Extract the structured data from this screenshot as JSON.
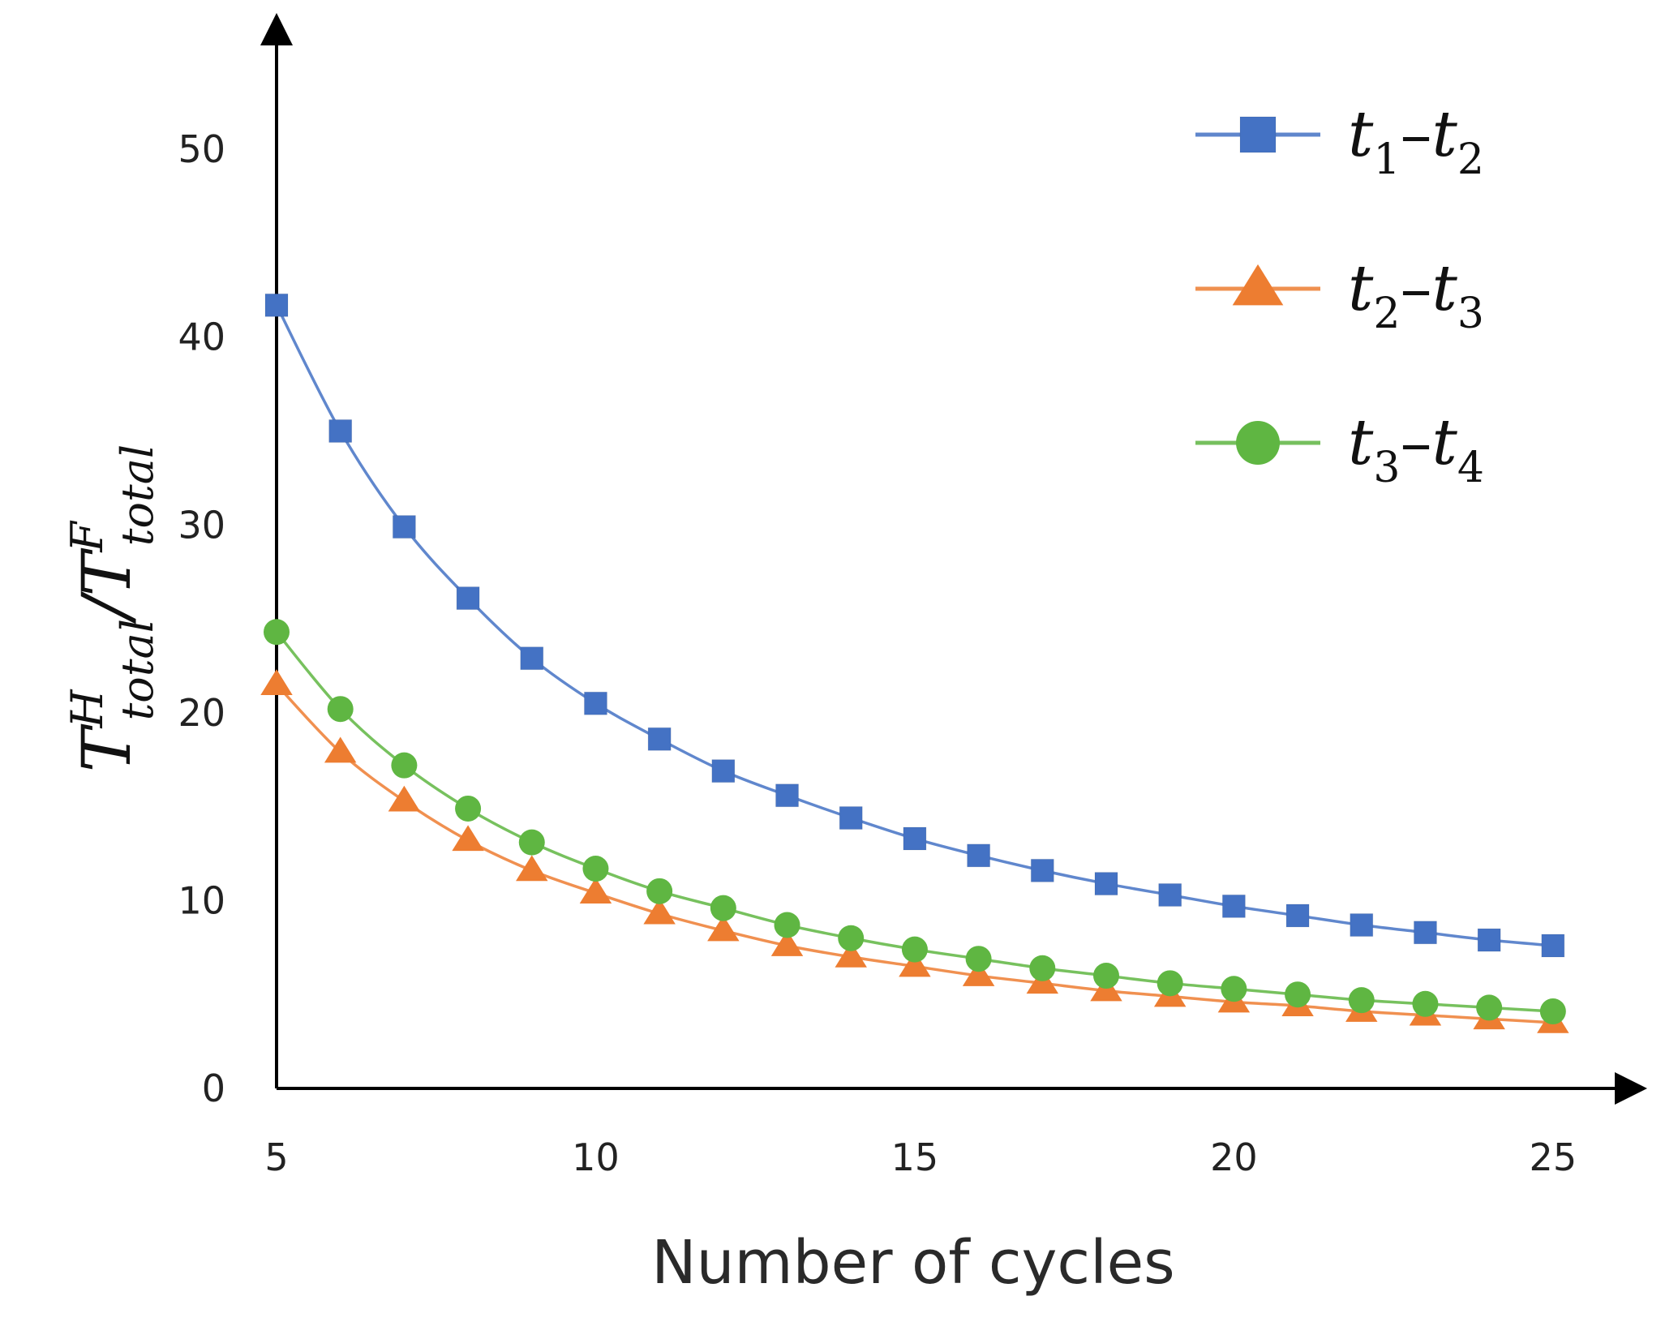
{
  "chart_data": {
    "type": "line",
    "title": "",
    "xlabel": "Number of cycles",
    "ylabel": {
      "base": "T",
      "num_sup": "H",
      "num_sub": "total",
      "slash": "/",
      "den_sup": "F",
      "den_sub": "total"
    },
    "x": [
      5,
      6,
      7,
      8,
      9,
      10,
      11,
      12,
      13,
      14,
      15,
      16,
      17,
      18,
      19,
      20,
      21,
      22,
      23,
      24,
      25
    ],
    "xlim": [
      5,
      26.4
    ],
    "ylim": [
      0,
      57
    ],
    "xticks": [
      5,
      10,
      15,
      20,
      25
    ],
    "yticks": [
      0,
      10,
      20,
      30,
      40,
      50
    ],
    "grid": false,
    "legend_position": "top-right",
    "series": [
      {
        "name": "t1–t2",
        "legend": {
          "a": "t",
          "a_sub": "1",
          "dash": "–",
          "b": "t",
          "b_sub": "2"
        },
        "color": "#4472C4",
        "marker": "square",
        "values": [
          41.7,
          35.0,
          29.9,
          26.1,
          22.9,
          20.5,
          18.6,
          16.9,
          15.6,
          14.4,
          13.3,
          12.4,
          11.6,
          10.9,
          10.3,
          9.7,
          9.2,
          8.7,
          8.3,
          7.9,
          7.6
        ]
      },
      {
        "name": "t2–t3",
        "legend": {
          "a": "t",
          "a_sub": "2",
          "dash": "–",
          "b": "t",
          "b_sub": "3"
        },
        "color": "#ED7D31",
        "marker": "triangle",
        "values": [
          21.5,
          17.9,
          15.3,
          13.2,
          11.6,
          10.4,
          9.3,
          8.4,
          7.6,
          7.0,
          6.5,
          6.0,
          5.6,
          5.2,
          4.9,
          4.6,
          4.4,
          4.1,
          3.9,
          3.7,
          3.5
        ]
      },
      {
        "name": "t3–t4",
        "legend": {
          "a": "t",
          "a_sub": "3",
          "dash": "–",
          "b": "t",
          "b_sub": "4"
        },
        "color": "#5FB642",
        "marker": "circle",
        "values": [
          24.3,
          20.2,
          17.2,
          14.9,
          13.1,
          11.7,
          10.5,
          9.6,
          8.7,
          8.0,
          7.4,
          6.9,
          6.4,
          6.0,
          5.6,
          5.3,
          5.0,
          4.7,
          4.5,
          4.3,
          4.1
        ]
      }
    ]
  }
}
